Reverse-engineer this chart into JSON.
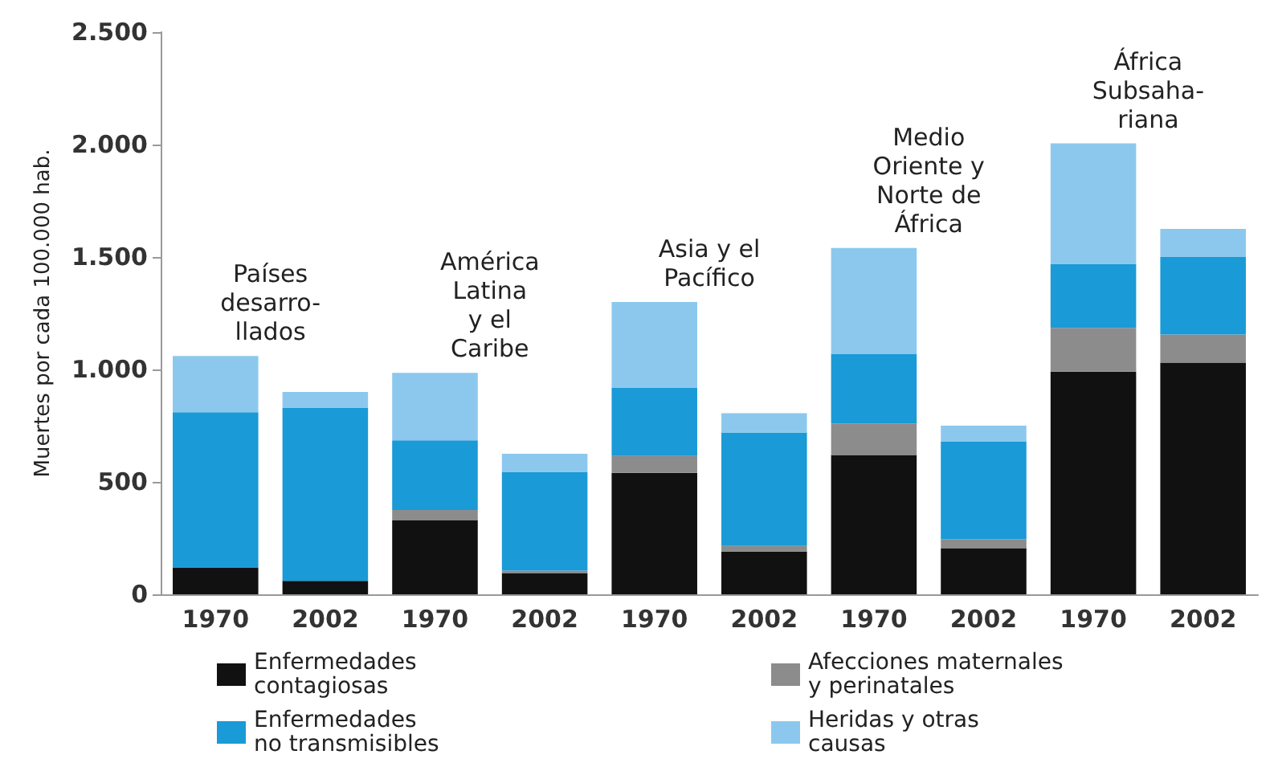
{
  "chart_data": {
    "type": "bar",
    "stacked": true,
    "ylabel": "Muertes por cada 100.000 hab.",
    "categories": [
      "1970",
      "2002",
      "1970",
      "2002",
      "1970",
      "2002",
      "1970",
      "2002",
      "1970",
      "2002"
    ],
    "series": [
      {
        "name": "Enfermedades\ncontagiosas",
        "color": "#111111",
        "values": [
          120,
          60,
          330,
          95,
          540,
          190,
          620,
          205,
          990,
          1030
        ]
      },
      {
        "name": "Afecciones maternales\ny perinatales",
        "color": "#8c8c8c",
        "values": [
          0,
          0,
          45,
          10,
          75,
          25,
          140,
          40,
          195,
          125
        ]
      },
      {
        "name": "Enfermedades\nno transmisibles",
        "color": "#1a9ad6",
        "values": [
          690,
          770,
          310,
          440,
          305,
          505,
          310,
          435,
          285,
          345
        ]
      },
      {
        "name": "Heridas y otras\ncausas",
        "color": "#8cc8ee",
        "values": [
          250,
          70,
          300,
          80,
          380,
          85,
          470,
          70,
          535,
          125
        ]
      }
    ],
    "ylim": [
      0,
      2500
    ],
    "yticks": [
      0,
      500,
      {
        "value": 1000,
        "label": "1.000"
      },
      {
        "value": 1500,
        "label": "1.500"
      },
      {
        "value": 2000,
        "label": "2.000"
      },
      {
        "value": 2500,
        "label": "2.500"
      }
    ],
    "annotations": [
      "Países\ndesarro-\nllados",
      "América\nLatina\ny el\nCaribe",
      "Asia y el\nPacífico",
      "Medio\nOriente y\nNorte de\nÁfrica",
      "África\nSubsaha-\nriana"
    ],
    "legend": "bottom",
    "grid": false
  }
}
